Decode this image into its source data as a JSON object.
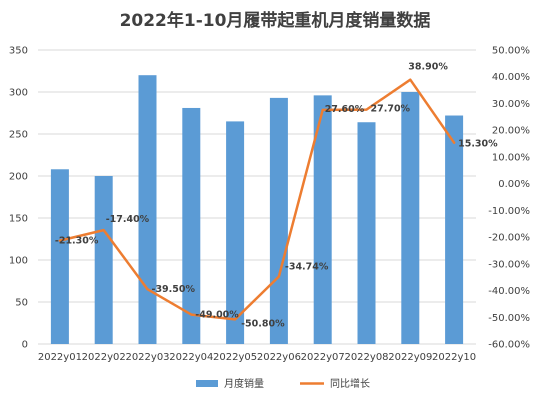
{
  "chart_data": {
    "type": "bar",
    "title": "2022年1-10月履带起重机月度销量数据",
    "categories": [
      "2022y01",
      "2022y02",
      "2022y03",
      "2022y04",
      "2022y05",
      "2022y06",
      "2022y07",
      "2022y08",
      "2022y09",
      "2022y10"
    ],
    "series": [
      {
        "name": "月度销量",
        "type": "bar",
        "axis": "left",
        "color": "#5b9bd5",
        "values": [
          208,
          200,
          320,
          281,
          265,
          293,
          296,
          264,
          300,
          272
        ]
      },
      {
        "name": "同比增长",
        "type": "line",
        "axis": "right",
        "color": "#ed7d31",
        "values": [
          -21.3,
          -17.4,
          -39.5,
          -49.0,
          -50.8,
          -34.74,
          27.6,
          27.7,
          38.9,
          15.3
        ],
        "labels": [
          "-21.30%",
          "-17.40%",
          "-39.50%",
          "-49.00%",
          "-50.80%",
          "-34.74%",
          "27.60%",
          "27.70%",
          "38.90%",
          "15.30%"
        ]
      }
    ],
    "y_left": {
      "min": 0,
      "max": 350,
      "step": 50,
      "ticks": [
        "0",
        "50",
        "100",
        "150",
        "200",
        "250",
        "300",
        "350"
      ]
    },
    "y_right": {
      "min": -60,
      "max": 50,
      "step": 10,
      "ticks": [
        "-60.00%",
        "-50.00%",
        "-40.00%",
        "-30.00%",
        "-20.00%",
        "-10.00%",
        "0.00%",
        "10.00%",
        "20.00%",
        "30.00%",
        "40.00%",
        "50.00%"
      ]
    },
    "grid": true,
    "legend_position": "bottom",
    "legend": [
      "月度销量",
      "同比增长"
    ]
  }
}
